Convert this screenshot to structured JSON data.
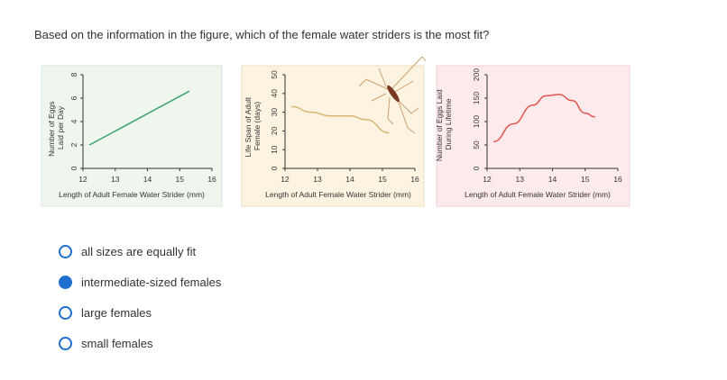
{
  "question": "Based on the information in the figure, which of the female water striders is the most fit?",
  "colors": {
    "accent": "#1f6fd1",
    "chart1_bg": "#eef6ee",
    "chart1_line": "#3aa36b",
    "chart2_bg": "#fdf3e1",
    "chart2_line": "#d8b774",
    "chart3_bg": "#fdeaec",
    "chart3_line": "#e2564f"
  },
  "chart_data": [
    {
      "type": "line",
      "ylabel": "Number of Eggs Laid per Day",
      "xlabel": "Length of Adult Female Water Strider (mm)",
      "xticks": [
        "12",
        "13",
        "14",
        "15",
        "16"
      ],
      "yticks": [
        "0",
        "2",
        "4",
        "6",
        "8"
      ],
      "xlim": [
        12,
        16
      ],
      "ylim": [
        0,
        8
      ],
      "x": [
        12.2,
        15.3
      ],
      "y": [
        2.0,
        6.6
      ]
    },
    {
      "type": "line",
      "ylabel": "Life Span of Adult Female (days)",
      "xlabel": "Length of Adult Female Water Strider (mm)",
      "xticks": [
        "12",
        "13",
        "14",
        "15",
        "16"
      ],
      "yticks": [
        "0",
        "10",
        "20",
        "30",
        "40",
        "50"
      ],
      "xlim": [
        12,
        16
      ],
      "ylim": [
        0,
        50
      ],
      "x": [
        12.2,
        12.8,
        13.4,
        14.0,
        14.5,
        15.2
      ],
      "y": [
        33,
        30,
        28,
        28,
        26,
        19
      ]
    },
    {
      "type": "line",
      "ylabel": "Number of Eggs Laid During Lifetime",
      "xlabel": "Length of Adult Female Water Strider (mm)",
      "xticks": [
        "12",
        "13",
        "14",
        "15",
        "16"
      ],
      "yticks": [
        "0",
        "50",
        "100",
        "150",
        "200"
      ],
      "xlim": [
        12,
        16
      ],
      "ylim": [
        0,
        200
      ],
      "x": [
        12.2,
        12.8,
        13.4,
        13.8,
        14.2,
        14.6,
        15.0,
        15.3
      ],
      "y": [
        57,
        95,
        135,
        155,
        158,
        145,
        118,
        110
      ]
    }
  ],
  "options": [
    {
      "label": "all sizes are equally fit",
      "selected": false
    },
    {
      "label": "intermediate-sized females",
      "selected": true
    },
    {
      "label": "large females",
      "selected": false
    },
    {
      "label": "small females",
      "selected": false
    }
  ]
}
